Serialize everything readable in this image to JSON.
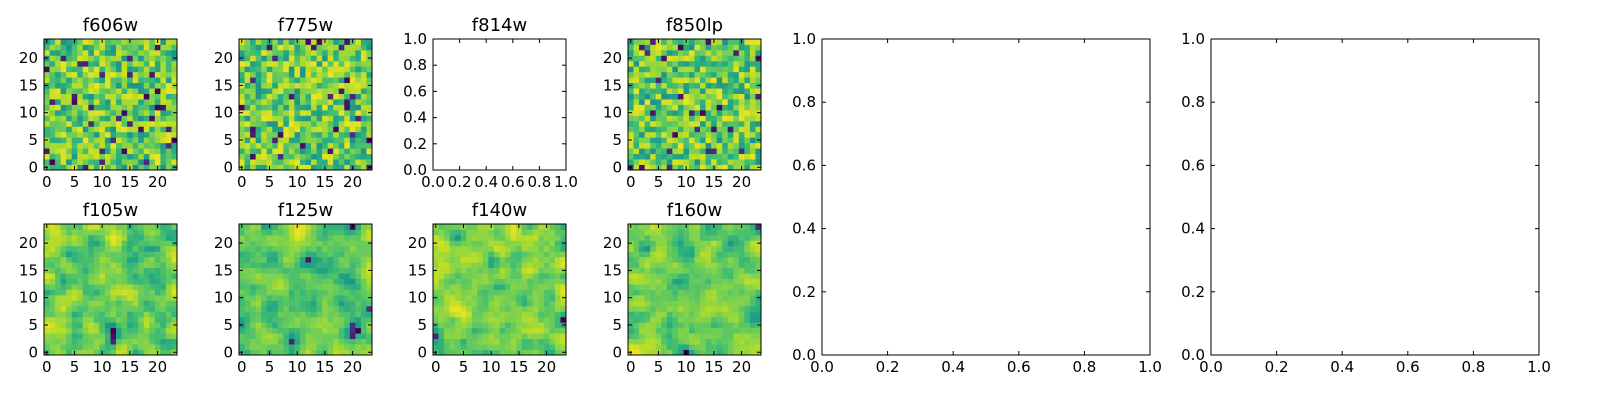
{
  "chart_data": [
    {
      "type": "heatmap",
      "title": "f606w",
      "xlim": [
        0,
        24
      ],
      "ylim": [
        0,
        24
      ],
      "xticks": [
        "0",
        "5",
        "10",
        "15",
        "20"
      ],
      "yticks": [
        "0",
        "5",
        "10",
        "15",
        "20"
      ],
      "colormap": "viridis",
      "grid_size": [
        24,
        24
      ],
      "seed": 11,
      "smooth": 0,
      "bias": 0.62
    },
    {
      "type": "heatmap",
      "title": "f775w",
      "xlim": [
        0,
        24
      ],
      "ylim": [
        0,
        24
      ],
      "xticks": [
        "0",
        "5",
        "10",
        "15",
        "20"
      ],
      "yticks": [
        "0",
        "5",
        "10",
        "15",
        "20"
      ],
      "colormap": "viridis",
      "grid_size": [
        24,
        24
      ],
      "seed": 23,
      "smooth": 0,
      "bias": 0.58
    },
    {
      "type": "empty",
      "title": "f814w",
      "xlim": [
        0,
        1
      ],
      "ylim": [
        0,
        1
      ],
      "xticks": [
        "0.0",
        "0.2",
        "0.4",
        "0.6",
        "0.8",
        "1.0"
      ],
      "yticks": [
        "0.0",
        "0.2",
        "0.4",
        "0.6",
        "0.8",
        "1.0"
      ]
    },
    {
      "type": "heatmap",
      "title": "f850lp",
      "xlim": [
        0,
        24
      ],
      "ylim": [
        0,
        24
      ],
      "xticks": [
        "0",
        "5",
        "10",
        "15",
        "20"
      ],
      "yticks": [
        "0",
        "5",
        "10",
        "15",
        "20"
      ],
      "colormap": "viridis",
      "grid_size": [
        24,
        24
      ],
      "seed": 37,
      "smooth": 0,
      "bias": 0.6
    },
    {
      "type": "empty",
      "title": "",
      "xlim": [
        0,
        1
      ],
      "ylim": [
        0,
        1
      ],
      "xticks": [
        "0.0",
        "0.2",
        "0.4",
        "0.6",
        "0.8",
        "1.0"
      ],
      "yticks": [
        "0.0",
        "0.2",
        "0.4",
        "0.6",
        "0.8",
        "1.0"
      ]
    },
    {
      "type": "empty",
      "title": "",
      "xlim": [
        0,
        1
      ],
      "ylim": [
        0,
        1
      ],
      "xticks": [
        "0.0",
        "0.2",
        "0.4",
        "0.6",
        "0.8",
        "1.0"
      ],
      "yticks": [
        "0.0",
        "0.2",
        "0.4",
        "0.6",
        "0.8",
        "1.0"
      ]
    },
    {
      "type": "heatmap",
      "title": "f105w",
      "xlim": [
        0,
        24
      ],
      "ylim": [
        0,
        24
      ],
      "xticks": [
        "0",
        "5",
        "10",
        "15",
        "20"
      ],
      "yticks": [
        "0",
        "5",
        "10",
        "15",
        "20"
      ],
      "colormap": "viridis",
      "grid_size": [
        24,
        24
      ],
      "seed": 41,
      "smooth": 1,
      "bias": 0.66
    },
    {
      "type": "heatmap",
      "title": "f125w",
      "xlim": [
        0,
        24
      ],
      "ylim": [
        0,
        24
      ],
      "xticks": [
        "0",
        "5",
        "10",
        "15",
        "20"
      ],
      "yticks": [
        "0",
        "5",
        "10",
        "15",
        "20"
      ],
      "colormap": "viridis",
      "grid_size": [
        24,
        24
      ],
      "seed": 53,
      "smooth": 1,
      "bias": 0.62
    },
    {
      "type": "heatmap",
      "title": "f140w",
      "xlim": [
        0,
        24
      ],
      "ylim": [
        0,
        24
      ],
      "xticks": [
        "0",
        "5",
        "10",
        "15",
        "20"
      ],
      "yticks": [
        "0",
        "5",
        "10",
        "15",
        "20"
      ],
      "colormap": "viridis",
      "grid_size": [
        24,
        24
      ],
      "seed": 67,
      "smooth": 1,
      "bias": 0.64
    },
    {
      "type": "heatmap",
      "title": "f160w",
      "xlim": [
        0,
        24
      ],
      "ylim": [
        0,
        24
      ],
      "xticks": [
        "0",
        "5",
        "10",
        "15",
        "20"
      ],
      "yticks": [
        "0",
        "5",
        "10",
        "15",
        "20"
      ],
      "colormap": "viridis",
      "grid_size": [
        24,
        24
      ],
      "seed": 79,
      "smooth": 1,
      "bias": 0.62
    }
  ],
  "colors": {
    "axis": "#000000",
    "background": "#ffffff"
  }
}
